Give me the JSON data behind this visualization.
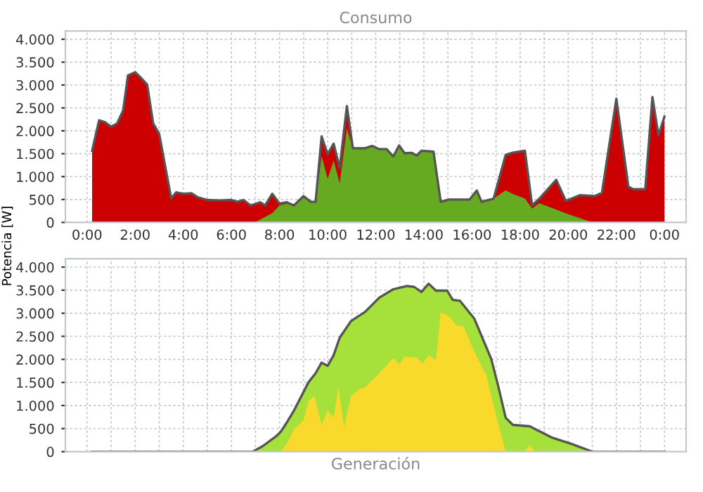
{
  "chart_data": [
    {
      "type": "area",
      "title": "Consumo",
      "ylabel": "Potencia [W]",
      "xlim": [
        -0.9,
        24.9
      ],
      "ylim": [
        0,
        4180
      ],
      "xticks": [
        {
          "value": 0,
          "label": "0:00"
        },
        {
          "value": 1,
          "label": null
        },
        {
          "value": 2,
          "label": "2:00"
        },
        {
          "value": 3,
          "label": null
        },
        {
          "value": 4,
          "label": "4:00"
        },
        {
          "value": 5,
          "label": null
        },
        {
          "value": 6,
          "label": "6:00"
        },
        {
          "value": 7,
          "label": null
        },
        {
          "value": 8,
          "label": "8:00"
        },
        {
          "value": 9,
          "label": null
        },
        {
          "value": 10,
          "label": "10:00"
        },
        {
          "value": 11,
          "label": null
        },
        {
          "value": 12,
          "label": "12:00"
        },
        {
          "value": 13,
          "label": null
        },
        {
          "value": 14,
          "label": "14:00"
        },
        {
          "value": 15,
          "label": null
        },
        {
          "value": 16,
          "label": "16:00"
        },
        {
          "value": 17,
          "label": null
        },
        {
          "value": 18,
          "label": "18:00"
        },
        {
          "value": 19,
          "label": null
        },
        {
          "value": 20,
          "label": "20:00"
        },
        {
          "value": 21,
          "label": null
        },
        {
          "value": 22,
          "label": "22:00"
        },
        {
          "value": 23,
          "label": null
        },
        {
          "value": 24,
          "label": "0:00"
        }
      ],
      "yticks": [
        0,
        500,
        {
          "value": 1000,
          "label": "1.000"
        },
        {
          "value": 1500,
          "label": "1.500"
        },
        {
          "value": 2000,
          "label": "2.000"
        },
        {
          "value": 2500,
          "label": "2.500"
        },
        {
          "value": 3000,
          "label": "3.000"
        },
        {
          "value": 3500,
          "label": "3.500"
        },
        {
          "value": 4000,
          "label": "4.000"
        }
      ],
      "grid": true,
      "series": [
        {
          "color": "#cc0000",
          "x": [
            0.21,
            0.5,
            0.75,
            1.0,
            1.25,
            1.5,
            1.7,
            2.0,
            2.2,
            2.5,
            2.75,
            3.0,
            3.5,
            3.7,
            4.0,
            4.35,
            4.6,
            5.0,
            5.5,
            6.0,
            6.25,
            6.5,
            6.8,
            7.2,
            7.4,
            7.7,
            8.0,
            8.3,
            8.6,
            9.0,
            9.3,
            9.5,
            9.75,
            10.0,
            10.25,
            10.5,
            10.8,
            11.05,
            11.55,
            11.85,
            12.14,
            12.45,
            12.73,
            12.97,
            13.2,
            13.5,
            13.7,
            13.9,
            14.4,
            14.7,
            15.05,
            15.9,
            16.2,
            16.4,
            16.9,
            17.4,
            17.7,
            18.2,
            18.5,
            18.8,
            19.5,
            19.9,
            20.5,
            21.1,
            21.4,
            22.0,
            22.5,
            22.7,
            23.2,
            23.5,
            23.75,
            24.0
          ],
          "values": [
            1560,
            2230,
            2190,
            2090,
            2160,
            2445,
            3210,
            3280,
            3180,
            3010,
            2160,
            1930,
            520,
            655,
            625,
            635,
            550,
            490,
            480,
            490,
            450,
            490,
            370,
            440,
            370,
            625,
            410,
            440,
            370,
            575,
            450,
            450,
            1880,
            1490,
            1720,
            1190,
            2540,
            1620,
            1620,
            1670,
            1600,
            1600,
            1440,
            1680,
            1510,
            1520,
            1460,
            1565,
            1545,
            450,
            500,
            500,
            695,
            450,
            520,
            1475,
            1525,
            1565,
            370,
            520,
            930,
            470,
            595,
            575,
            645,
            2700,
            780,
            725,
            725,
            2740,
            1900,
            2310
          ]
        },
        {
          "color": "#66aa22",
          "x": [
            6.98,
            7.3,
            7.7,
            8.0,
            8.3,
            8.6,
            9.0,
            9.3,
            9.5,
            9.75,
            10.0,
            10.25,
            10.5,
            10.8,
            11.05,
            11.55,
            11.85,
            12.14,
            12.45,
            12.73,
            12.97,
            13.2,
            13.5,
            13.7,
            13.9,
            14.4,
            14.7,
            15.05,
            15.9,
            16.2,
            16.4,
            16.9,
            17.4,
            17.7,
            18.2,
            18.5,
            18.8,
            19.5,
            20.0,
            20.5,
            21.0
          ],
          "values": [
            0,
            90,
            200,
            370,
            410,
            370,
            540,
            440,
            440,
            1450,
            950,
            1350,
            850,
            2050,
            1600,
            1600,
            1670,
            1600,
            1600,
            1440,
            1680,
            1510,
            1520,
            1460,
            1565,
            1545,
            450,
            500,
            500,
            695,
            450,
            520,
            700,
            620,
            520,
            300,
            420,
            280,
            180,
            90,
            0
          ]
        }
      ]
    },
    {
      "type": "area",
      "title": "Generación",
      "xlim": [
        -0.9,
        24.9
      ],
      "ylim": [
        0,
        4180
      ],
      "tick_labels": "y",
      "xticks": [
        {
          "value": 0,
          "label": null
        },
        {
          "value": 1,
          "label": null
        },
        {
          "value": 2,
          "label": null
        },
        {
          "value": 3,
          "label": null
        },
        {
          "value": 4,
          "label": null
        },
        {
          "value": 5,
          "label": null
        },
        {
          "value": 6,
          "label": null
        },
        {
          "value": 7,
          "label": null
        },
        {
          "value": 8,
          "label": null
        },
        {
          "value": 9,
          "label": null
        },
        {
          "value": 10,
          "label": null
        },
        {
          "value": 11,
          "label": null
        },
        {
          "value": 12,
          "label": null
        },
        {
          "value": 13,
          "label": null
        },
        {
          "value": 14,
          "label": null
        },
        {
          "value": 15,
          "label": null
        },
        {
          "value": 16,
          "label": null
        },
        {
          "value": 17,
          "label": null
        },
        {
          "value": 18,
          "label": null
        },
        {
          "value": 19,
          "label": null
        },
        {
          "value": 20,
          "label": null
        },
        {
          "value": 21,
          "label": null
        },
        {
          "value": 22,
          "label": null
        },
        {
          "value": 23,
          "label": null
        },
        {
          "value": 24,
          "label": null
        }
      ],
      "yticks": [
        0,
        500,
        {
          "value": 1000,
          "label": "1.000"
        },
        {
          "value": 1500,
          "label": "1.500"
        },
        {
          "value": 2000,
          "label": "2.000"
        },
        {
          "value": 2500,
          "label": "2.500"
        },
        {
          "value": 3000,
          "label": "3.000"
        },
        {
          "value": 3500,
          "label": "3.500"
        },
        {
          "value": 4000,
          "label": "4.000"
        }
      ],
      "grid": true,
      "series": [
        {
          "color": "#a6e03a",
          "x": [
            0.21,
            6.88,
            7.3,
            7.85,
            8.05,
            8.3,
            8.6,
            9.2,
            9.5,
            9.75,
            10.0,
            10.25,
            10.5,
            10.97,
            11.56,
            12.15,
            12.73,
            13.3,
            13.6,
            13.9,
            14.2,
            14.5,
            14.97,
            15.2,
            15.5,
            16.1,
            16.8,
            17.1,
            17.4,
            17.7,
            18.4,
            18.96,
            19.35,
            20.1,
            20.9,
            21.0,
            24.0
          ],
          "values": [
            0,
            0,
            120,
            330,
            430,
            630,
            890,
            1500,
            1700,
            1930,
            1860,
            2090,
            2470,
            2830,
            3030,
            3340,
            3520,
            3590,
            3570,
            3460,
            3640,
            3490,
            3490,
            3290,
            3270,
            2880,
            2010,
            1400,
            735,
            580,
            550,
            400,
            300,
            175,
            20,
            0,
            0
          ]
        },
        {
          "color": "#f9d92c",
          "x": [
            8.05,
            8.3,
            8.6,
            9.0,
            9.2,
            9.45,
            9.75,
            10.0,
            10.25,
            10.45,
            10.68,
            10.97,
            11.3,
            11.56,
            12.15,
            12.73,
            12.97,
            13.2,
            13.7,
            13.95,
            14.2,
            14.5,
            14.7,
            15.05,
            15.35,
            15.64,
            16.1,
            16.6,
            17.0,
            17.4,
            18.2,
            18.4,
            18.6
          ],
          "values": [
            0,
            170,
            480,
            680,
            1090,
            1210,
            580,
            890,
            735,
            1400,
            530,
            1210,
            1350,
            1400,
            1700,
            2030,
            1890,
            2060,
            2040,
            1910,
            2090,
            1980,
            3030,
            2930,
            2740,
            2720,
            2160,
            1650,
            790,
            0,
            0,
            150,
            0
          ]
        }
      ]
    }
  ]
}
